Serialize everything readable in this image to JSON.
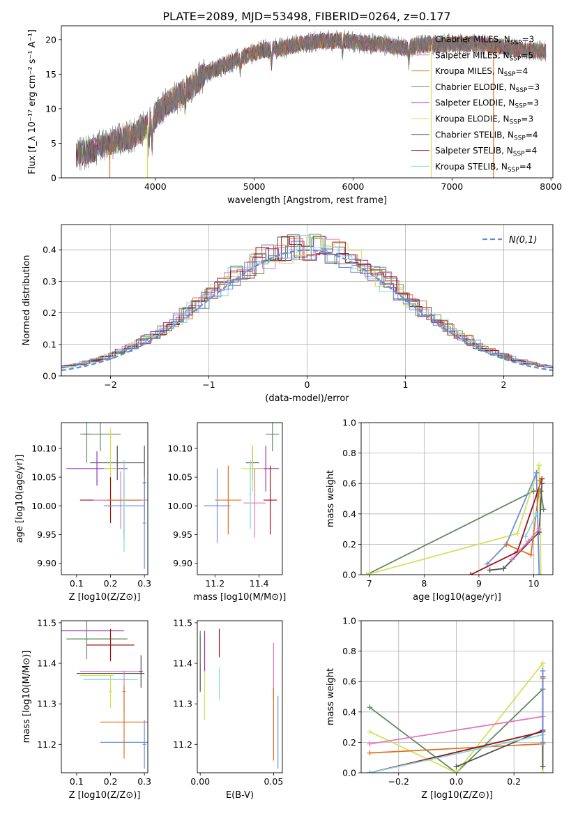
{
  "figure_title": "PLATE=2089, MJD=53498, FIBERID=0264, z=0.177",
  "colors": {
    "chabrier_miles": "#7f7f7f",
    "salpeter_miles": "#e377c2",
    "kroupa_miles": "#e0701d",
    "chabrier_elodie": "#5f8a5f",
    "salpeter_elodie": "#9b30b0",
    "kroupa_elodie": "#d4e157",
    "chabrier_stelib": "#505050",
    "salpeter_stelib": "#a01010",
    "kroupa_stelib": "#80d8e0",
    "normal": "#5b8fd6",
    "blue": "#6a8fe0"
  },
  "chart_data": [
    {
      "type": "line",
      "id": "spectrum",
      "xlabel": "wavelength [Angstrom, rest frame]",
      "ylabel": "Flux [f_λ 10⁻¹⁷ erg cm⁻² s⁻¹ A⁻¹]",
      "xlim": [
        3050,
        8020
      ],
      "ylim": [
        0,
        22
      ],
      "xticks": [
        4000,
        5000,
        6000,
        7000,
        8000
      ],
      "yticks": [
        0,
        5,
        10,
        15,
        20
      ],
      "legend_position": "right",
      "data_envelope": {
        "x": [
          3200,
          3400,
          3600,
          3800,
          3950,
          4100,
          4300,
          4500,
          4700,
          4900,
          5100,
          5300,
          5500,
          5700,
          5900,
          6100,
          6300,
          6500,
          6700,
          6900,
          7100,
          7300,
          7500,
          7700,
          7950
        ],
        "y": [
          3.3,
          4.2,
          5.3,
          6.2,
          8.0,
          10.5,
          12.5,
          15.0,
          16.3,
          17.6,
          18.5,
          18.8,
          19.5,
          19.8,
          19.9,
          19.5,
          19.3,
          18.8,
          19.2,
          19.3,
          19.4,
          19.3,
          19.0,
          18.5,
          18.3
        ]
      },
      "legend": [
        {
          "text": "Chabrier MILES, N",
          "sub": "SSP",
          "suffix": "=3",
          "color_key": "chabrier_miles"
        },
        {
          "text": "Salpeter MILES, N",
          "sub": "SSP",
          "suffix": "=5",
          "color_key": "salpeter_miles"
        },
        {
          "text": "Kroupa MILES, N",
          "sub": "SSP",
          "suffix": "=4",
          "color_key": "kroupa_miles"
        },
        {
          "text": "Chabrier ELODIE, N",
          "sub": "SSP",
          "suffix": "=3",
          "color_key": "chabrier_elodie"
        },
        {
          "text": "Salpeter ELODIE, N",
          "sub": "SSP",
          "suffix": "=3",
          "color_key": "salpeter_elodie"
        },
        {
          "text": "Kroupa ELODIE, N",
          "sub": "SSP",
          "suffix": "=3",
          "color_key": "kroupa_elodie"
        },
        {
          "text": "Chabrier STELIB, N",
          "sub": "SSP",
          "suffix": "=4",
          "color_key": "chabrier_stelib"
        },
        {
          "text": "Salpeter STELIB, N",
          "sub": "SSP",
          "suffix": "=4",
          "color_key": "salpeter_stelib"
        },
        {
          "text": "Kroupa STELIB, N",
          "sub": "SSP",
          "suffix": "=4",
          "color_key": "kroupa_stelib"
        }
      ]
    },
    {
      "type": "bar",
      "id": "residuals",
      "xlabel": "(data-model)/error",
      "ylabel": "Normed distribution",
      "xlim": [
        -2.5,
        2.5
      ],
      "ylim": [
        0,
        0.48
      ],
      "xticks": [
        -2,
        -1,
        0,
        1,
        2
      ],
      "yticks": [
        0.0,
        0.1,
        0.2,
        0.3,
        0.4
      ],
      "grid": true,
      "legend": "N(0,1)",
      "legend_position": "top-right",
      "normal_curve": {
        "mean": 0,
        "sigma": 1
      }
    },
    {
      "type": "scatter",
      "id": "age_vs_Z",
      "xlabel": "Z [log10(Z/Z⊙)]",
      "ylabel": "age [log10(age/yr)]",
      "xlim": [
        0.055,
        0.31
      ],
      "ylim": [
        9.88,
        10.145
      ],
      "xticks": [
        0.1,
        0.2,
        0.3
      ],
      "yticks": [
        9.9,
        9.95,
        10.0,
        10.05,
        10.1
      ],
      "points": [
        {
          "x": 0.17,
          "y": 10.125,
          "xerr": 0.06,
          "yerr": 0.03,
          "color_key": "chabrier_elodie"
        },
        {
          "x": 0.13,
          "y": 10.125,
          "xerr": 0.01,
          "yerr": 0.05,
          "color_key": "chabrier_elodie"
        },
        {
          "x": 0.16,
          "y": 10.065,
          "xerr": 0.09,
          "yerr": 0.03,
          "color_key": "salpeter_elodie"
        },
        {
          "x": 0.22,
          "y": 10.075,
          "xerr": 0.08,
          "yerr": 0.03,
          "color_key": "chabrier_stelib"
        },
        {
          "x": 0.2,
          "y": 10.065,
          "xerr": 0.02,
          "yerr": 0.07,
          "color_key": "kroupa_elodie"
        },
        {
          "x": 0.2,
          "y": 10.01,
          "xerr": 0.09,
          "yerr": 0.04,
          "color_key": "salpeter_stelib"
        },
        {
          "x": 0.23,
          "y": 10.01,
          "xerr": 0.08,
          "yerr": 0.05,
          "color_key": "salpeter_miles"
        },
        {
          "x": 0.24,
          "y": 10.01,
          "xerr": 0.05,
          "yerr": 0.07,
          "color_key": "kroupa_miles"
        },
        {
          "x": 0.24,
          "y": 10.0,
          "xerr": 0.06,
          "yerr": 0.05,
          "color_key": "blue"
        },
        {
          "x": 0.3,
          "y": 10.04,
          "xerr": 0.005,
          "yerr": 0.065,
          "color_key": "chabrier_stelib"
        },
        {
          "x": 0.3,
          "y": 9.97,
          "xerr": 0.005,
          "yerr": 0.08,
          "color_key": "blue"
        },
        {
          "x": 0.24,
          "y": 10.0,
          "xerr": 0.005,
          "yerr": 0.08,
          "color_key": "kroupa_stelib"
        }
      ]
    },
    {
      "type": "scatter",
      "id": "age_vs_mass",
      "xlabel": "mass [log10(M/M⊙)]",
      "ylabel": "",
      "xlim": [
        11.12,
        11.505
      ],
      "ylim": [
        9.88,
        10.145
      ],
      "xticks": [
        11.2,
        11.4
      ],
      "yticks": [
        9.9,
        9.95,
        10.0,
        10.05,
        10.1
      ],
      "points": [
        {
          "x": 11.46,
          "y": 10.125,
          "xerr": 0.03,
          "yerr": 0.03,
          "color_key": "chabrier_elodie"
        },
        {
          "x": 11.43,
          "y": 10.065,
          "xerr": 0.06,
          "yerr": 0.04,
          "color_key": "salpeter_elodie"
        },
        {
          "x": 11.37,
          "y": 10.075,
          "xerr": 0.03,
          "yerr": 0.03,
          "color_key": "chabrier_stelib"
        },
        {
          "x": 11.37,
          "y": 10.065,
          "xerr": 0.05,
          "yerr": 0.04,
          "color_key": "kroupa_elodie"
        },
        {
          "x": 11.45,
          "y": 10.01,
          "xerr": 0.03,
          "yerr": 0.06,
          "color_key": "salpeter_stelib"
        },
        {
          "x": 11.38,
          "y": 10.005,
          "xerr": 0.05,
          "yerr": 0.06,
          "color_key": "salpeter_miles"
        },
        {
          "x": 11.26,
          "y": 10.01,
          "xerr": 0.06,
          "yerr": 0.06,
          "color_key": "kroupa_miles"
        },
        {
          "x": 11.21,
          "y": 10.0,
          "xerr": 0.06,
          "yerr": 0.065,
          "color_key": "blue"
        },
        {
          "x": 11.36,
          "y": 10.02,
          "xerr": 0.005,
          "yerr": 0.06,
          "color_key": "kroupa_stelib"
        }
      ]
    },
    {
      "type": "line",
      "id": "massweight_vs_age",
      "xlabel": "age [log10(age/yr)]",
      "ylabel": "mass weight",
      "xlim": [
        6.85,
        10.35
      ],
      "ylim": [
        0,
        1.0
      ],
      "xticks": [
        7,
        8,
        9,
        10
      ],
      "yticks": [
        0.0,
        0.2,
        0.4,
        0.6,
        0.8,
        1.0
      ],
      "grid": true,
      "series": [
        {
          "color_key": "chabrier_elodie",
          "x": [
            6.95,
            10.0,
            10.13,
            10.18
          ],
          "y": [
            0.0,
            0.55,
            0.55,
            0.43
          ]
        },
        {
          "color_key": "kroupa_elodie",
          "x": [
            6.95,
            9.7,
            10.1,
            10.13
          ],
          "y": [
            0.0,
            0.27,
            0.72,
            0.0
          ]
        },
        {
          "color_key": "blue",
          "x": [
            9.15,
            9.5,
            10.05,
            10.1
          ],
          "y": [
            0.07,
            0.2,
            0.67,
            0.0
          ]
        },
        {
          "color_key": "salpeter_stelib",
          "x": [
            8.85,
            9.7,
            10.15
          ],
          "y": [
            0.0,
            0.15,
            0.63
          ]
        },
        {
          "color_key": "chabrier_stelib",
          "x": [
            9.2,
            9.45,
            10.1,
            10.15
          ],
          "y": [
            0.03,
            0.04,
            0.28,
            0.6
          ]
        },
        {
          "color_key": "kroupa_miles",
          "x": [
            9.5,
            9.95,
            10.12
          ],
          "y": [
            0.2,
            0.13,
            0.62
          ]
        },
        {
          "color_key": "salpeter_miles",
          "x": [
            9.6,
            9.9,
            10.1
          ],
          "y": [
            0.1,
            0.22,
            0.3
          ]
        },
        {
          "color_key": "kroupa_stelib",
          "x": [
            9.85,
            10.05
          ],
          "y": [
            0.25,
            0.4
          ]
        }
      ]
    },
    {
      "type": "scatter",
      "id": "mass_vs_Z",
      "xlabel": "Z [log10(Z/Z⊙)]",
      "ylabel": "mass [log10(M/M⊙)]",
      "xlim": [
        0.055,
        0.31
      ],
      "ylim": [
        11.13,
        11.505
      ],
      "xticks": [
        0.1,
        0.2,
        0.3
      ],
      "yticks": [
        11.2,
        11.3,
        11.4,
        11.5
      ],
      "points": [
        {
          "x": 0.14,
          "y": 11.48,
          "xerr": 0.1,
          "yerr": 0.0,
          "color_key": "salpeter_elodie"
        },
        {
          "x": 0.16,
          "y": 11.46,
          "xerr": 0.09,
          "yerr": 0.0,
          "color_key": "chabrier_elodie"
        },
        {
          "x": 0.13,
          "y": 11.46,
          "xerr": 0.005,
          "yerr": 0.05,
          "color_key": "chabrier_elodie"
        },
        {
          "x": 0.2,
          "y": 11.445,
          "xerr": 0.07,
          "yerr": 0.04,
          "color_key": "salpeter_stelib"
        },
        {
          "x": 0.2,
          "y": 11.38,
          "xerr": 0.09,
          "yerr": 0.0,
          "color_key": "salpeter_miles"
        },
        {
          "x": 0.2,
          "y": 11.375,
          "xerr": 0.1,
          "yerr": 0.0,
          "color_key": "chabrier_stelib"
        },
        {
          "x": 0.16,
          "y": 11.37,
          "xerr": 0.05,
          "yerr": 0.0,
          "color_key": "kroupa_elodie"
        },
        {
          "x": 0.2,
          "y": 11.36,
          "xerr": 0.08,
          "yerr": 0.0,
          "color_key": "kroupa_stelib"
        },
        {
          "x": 0.2,
          "y": 11.33,
          "xerr": 0.005,
          "yerr": 0.04,
          "color_key": "kroupa_elodie"
        },
        {
          "x": 0.24,
          "y": 11.33,
          "xerr": 0.005,
          "yerr": 0.05,
          "color_key": "salpeter_miles"
        },
        {
          "x": 0.29,
          "y": 11.38,
          "xerr": 0.005,
          "yerr": 0.04,
          "color_key": "chabrier_stelib"
        },
        {
          "x": 0.24,
          "y": 11.255,
          "xerr": 0.07,
          "yerr": 0.09,
          "color_key": "kroupa_miles"
        },
        {
          "x": 0.25,
          "y": 11.205,
          "xerr": 0.08,
          "yerr": 0.0,
          "color_key": "blue"
        },
        {
          "x": 0.3,
          "y": 11.2,
          "xerr": 0.005,
          "yerr": 0.06,
          "color_key": "blue"
        }
      ]
    },
    {
      "type": "scatter",
      "id": "mass_vs_EBV",
      "xlabel": "E(B-V)",
      "ylabel": "",
      "xlim": [
        -0.002,
        0.056
      ],
      "ylim": [
        11.13,
        11.505
      ],
      "xticks": [
        0.0,
        0.05
      ],
      "yticks": [
        11.2,
        11.3,
        11.4,
        11.5
      ],
      "points": [
        {
          "x": 0.0,
          "y": 11.4,
          "xerr": 0.0,
          "yerr": 0.07,
          "color_key": "chabrier_stelib"
        },
        {
          "x": 0.0,
          "y": 11.44,
          "xerr": 0.0,
          "yerr": 0.04,
          "color_key": "chabrier_elodie"
        },
        {
          "x": 0.003,
          "y": 11.43,
          "xerr": 0.0,
          "yerr": 0.05,
          "color_key": "salpeter_elodie"
        },
        {
          "x": 0.003,
          "y": 11.32,
          "xerr": 0.0,
          "yerr": 0.06,
          "color_key": "kroupa_elodie"
        },
        {
          "x": 0.013,
          "y": 11.45,
          "xerr": 0.0,
          "yerr": 0.035,
          "color_key": "salpeter_stelib"
        },
        {
          "x": 0.013,
          "y": 11.35,
          "xerr": 0.0,
          "yerr": 0.04,
          "color_key": "kroupa_stelib"
        },
        {
          "x": 0.05,
          "y": 11.38,
          "xerr": 0.0,
          "yerr": 0.07,
          "color_key": "salpeter_miles"
        },
        {
          "x": 0.05,
          "y": 11.25,
          "xerr": 0.0,
          "yerr": 0.09,
          "color_key": "kroupa_miles"
        },
        {
          "x": 0.053,
          "y": 11.23,
          "xerr": 0.0,
          "yerr": 0.09,
          "color_key": "blue"
        }
      ]
    },
    {
      "type": "line",
      "id": "massweight_vs_Z",
      "xlabel": "Z [log10(Z/Z⊙)]",
      "ylabel": "mass weight",
      "xlim": [
        -0.33,
        0.335
      ],
      "ylim": [
        0,
        1.0
      ],
      "xticks": [
        -0.2,
        0.0,
        0.2
      ],
      "yticks": [
        0.0,
        0.2,
        0.4,
        0.6,
        0.8,
        1.0
      ],
      "grid": true,
      "series": [
        {
          "color_key": "chabrier_elodie",
          "x": [
            -0.3,
            0.0,
            0.3,
            0.3
          ],
          "y": [
            0.43,
            0.0,
            0.55,
            0.0
          ]
        },
        {
          "color_key": "kroupa_elodie",
          "x": [
            -0.3,
            0.0,
            0.3,
            0.3
          ],
          "y": [
            0.27,
            0.0,
            0.72,
            0.0
          ]
        },
        {
          "color_key": "salpeter_miles",
          "x": [
            -0.3,
            0.3
          ],
          "y": [
            0.19,
            0.37
          ]
        },
        {
          "color_key": "kroupa_miles",
          "x": [
            -0.3,
            0.3,
            0.3
          ],
          "y": [
            0.13,
            0.19,
            0.62
          ]
        },
        {
          "color_key": "chabrier_stelib",
          "x": [
            0.0,
            0.3,
            0.3
          ],
          "y": [
            0.04,
            0.28,
            0.04
          ]
        },
        {
          "color_key": "salpeter_stelib",
          "x": [
            -0.3,
            0.3,
            0.3
          ],
          "y": [
            0.0,
            0.27,
            0.63
          ]
        },
        {
          "color_key": "kroupa_stelib",
          "x": [
            -0.3,
            0.3
          ],
          "y": [
            0.0,
            0.25
          ]
        },
        {
          "color_key": "blue",
          "x": [
            0.3,
            0.3
          ],
          "y": [
            0.2,
            0.67
          ]
        }
      ]
    }
  ]
}
